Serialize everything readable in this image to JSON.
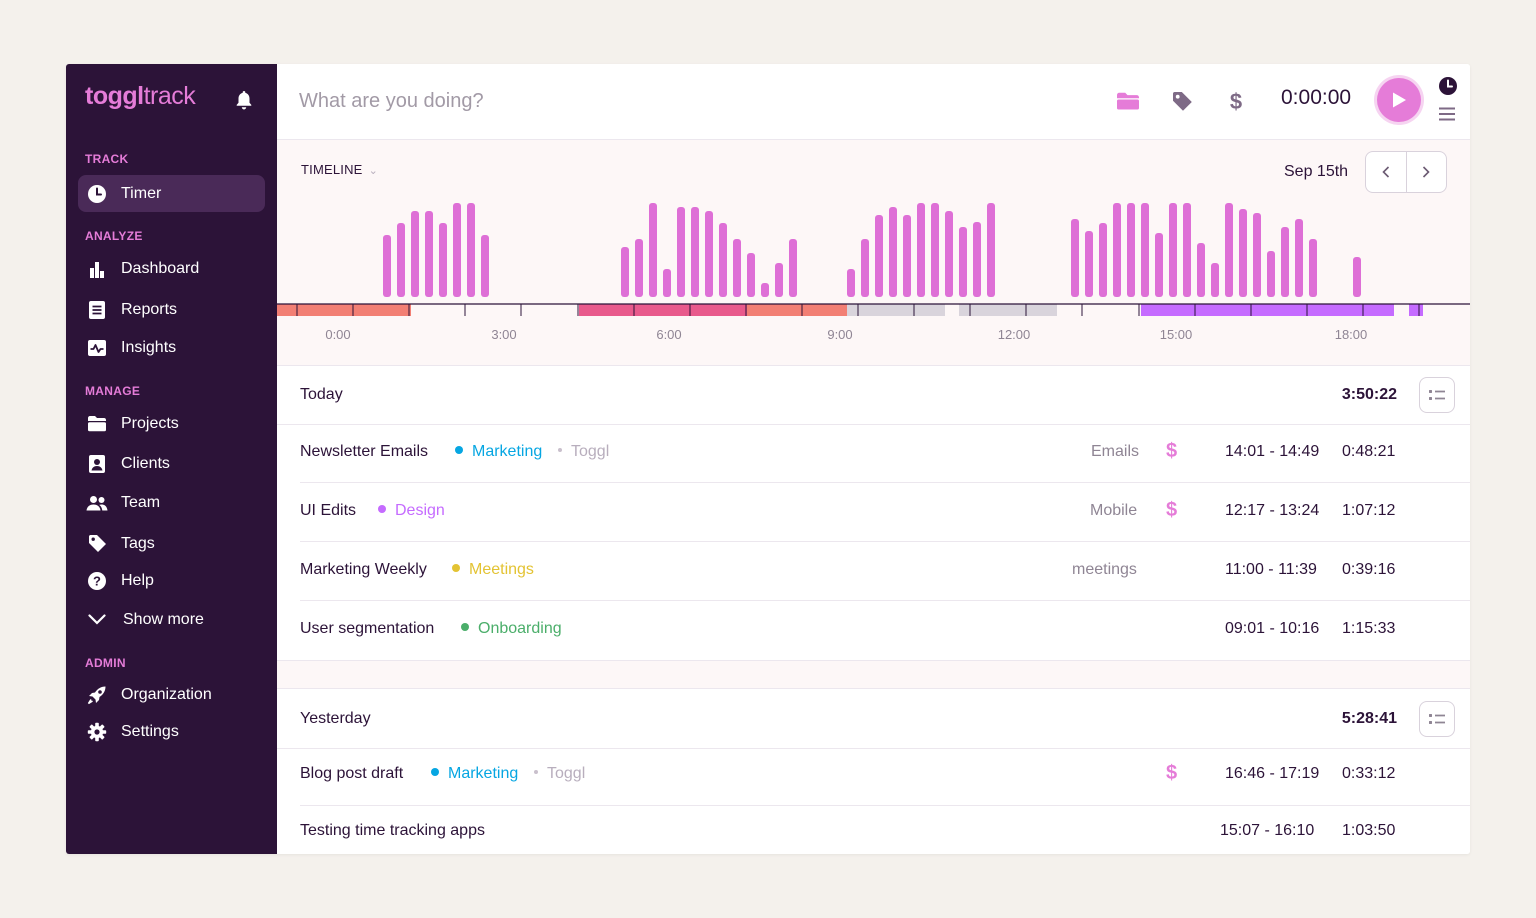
{
  "app": {
    "logo_bold": "toggl",
    "logo_light": "track"
  },
  "sidebar": {
    "sections": {
      "track": "TRACK",
      "analyze": "ANALYZE",
      "manage": "MANAGE",
      "admin": "ADMIN"
    },
    "items": {
      "timer": "Timer",
      "dashboard": "Dashboard",
      "reports": "Reports",
      "insights": "Insights",
      "projects": "Projects",
      "clients": "Clients",
      "team": "Team",
      "tags": "Tags",
      "help": "Help",
      "show_more": "Show more",
      "organization": "Organization",
      "settings": "Settings"
    }
  },
  "topbar": {
    "placeholder": "What are you doing?",
    "timer": "0:00:00"
  },
  "timeline": {
    "label": "TIMELINE",
    "date": "Sep 15th",
    "hour_labels": [
      "0:00",
      "3:00",
      "6:00",
      "9:00",
      "12:00",
      "15:00",
      "18:00"
    ]
  },
  "colors": {
    "accent": "#e57cd8",
    "sidebar_bg": "#2c1338",
    "marketing": "#06a6e2",
    "design": "#c56bff",
    "meetings": "#e3c333",
    "onboarding": "#4bae6a",
    "activity_bar": "#de6fd6"
  },
  "days": [
    {
      "title": "Today",
      "total": "3:50:22",
      "entries": [
        {
          "description": "Newsletter Emails",
          "project": "Marketing",
          "project_color": "#06a6e2",
          "client": "Toggl",
          "tag": "Emails",
          "billable": true,
          "range": "14:01 - 14:49",
          "duration": "0:48:21"
        },
        {
          "description": "UI Edits",
          "project": "Design",
          "project_color": "#c56bff",
          "client": "",
          "tag": "Mobile",
          "billable": true,
          "range": "12:17 - 13:24",
          "duration": "1:07:12"
        },
        {
          "description": "Marketing Weekly",
          "project": "Meetings",
          "project_color": "#e3c333",
          "client": "",
          "tag": "meetings",
          "billable": false,
          "range": "11:00 - 11:39",
          "duration": "0:39:16"
        },
        {
          "description": "User segmentation",
          "project": "Onboarding",
          "project_color": "#4bae6a",
          "client": "",
          "tag": "",
          "billable": false,
          "range": "09:01 - 10:16",
          "duration": "1:15:33"
        }
      ]
    },
    {
      "title": "Yesterday",
      "total": "5:28:41",
      "entries": [
        {
          "description": "Blog post draft",
          "project": "Marketing",
          "project_color": "#06a6e2",
          "client": "Toggl",
          "tag": "",
          "billable": true,
          "range": "16:46 - 17:19",
          "duration": "0:33:12"
        },
        {
          "description": "Testing time tracking apps",
          "project": "",
          "project_color": "",
          "client": "",
          "tag": "",
          "billable": false,
          "range": "15:07  - 16:10",
          "duration": "1:03:50"
        }
      ]
    }
  ]
}
